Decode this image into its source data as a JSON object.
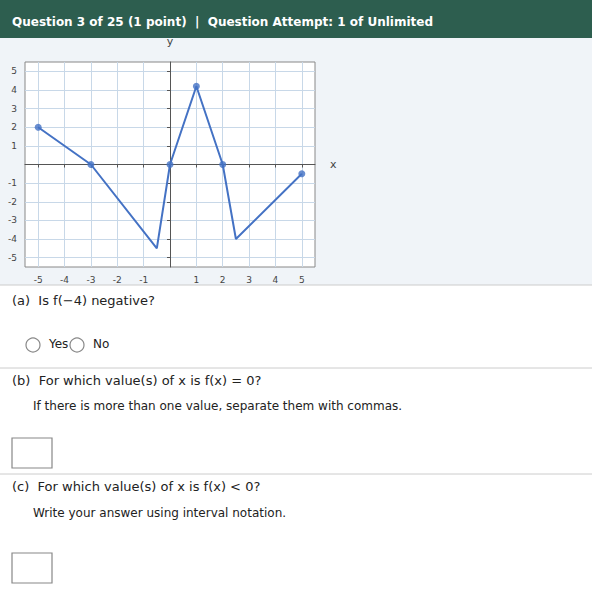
{
  "chart_data": {
    "type": "line",
    "title": "Question 3 of 25 (1 point)  |  Question Attempt: 1 of Unlimited",
    "xlabel": "x",
    "ylabel": "y",
    "series": [
      {
        "type": "line",
        "color": "#4472C4",
        "x": [
          -5,
          -3,
          -0.5,
          0,
          1,
          2,
          2.5,
          5
        ],
        "values": [
          2,
          0,
          -4.5,
          0,
          4.2,
          0,
          -4,
          -0.5
        ]
      },
      {
        "type": "scatter",
        "color": "#4472C4",
        "x": [
          -5,
          -3,
          0,
          1,
          2,
          5
        ],
        "values": [
          2,
          0,
          0,
          4.2,
          0,
          -0.5
        ]
      }
    ],
    "xlim": [
      -5.5,
      5.5
    ],
    "ylim": [
      -5.5,
      5.5
    ],
    "xticks": [
      -5,
      -4,
      -3,
      -2,
      -1,
      1,
      2,
      3,
      4,
      5
    ],
    "yticks": [
      -5,
      -4,
      -3,
      -2,
      -1,
      1,
      2,
      3,
      4,
      5
    ],
    "grid": true,
    "annotations": [
      "(a)  Is f(−4) negative?",
      "Yes",
      "No",
      "(b)  For which value(s) of x is f(x) = 0?",
      "If there is more than one value, separate them with commas.",
      "(c)  For which value(s) of x is f(x) < 0?",
      "Write your answer using interval notation."
    ]
  }
}
